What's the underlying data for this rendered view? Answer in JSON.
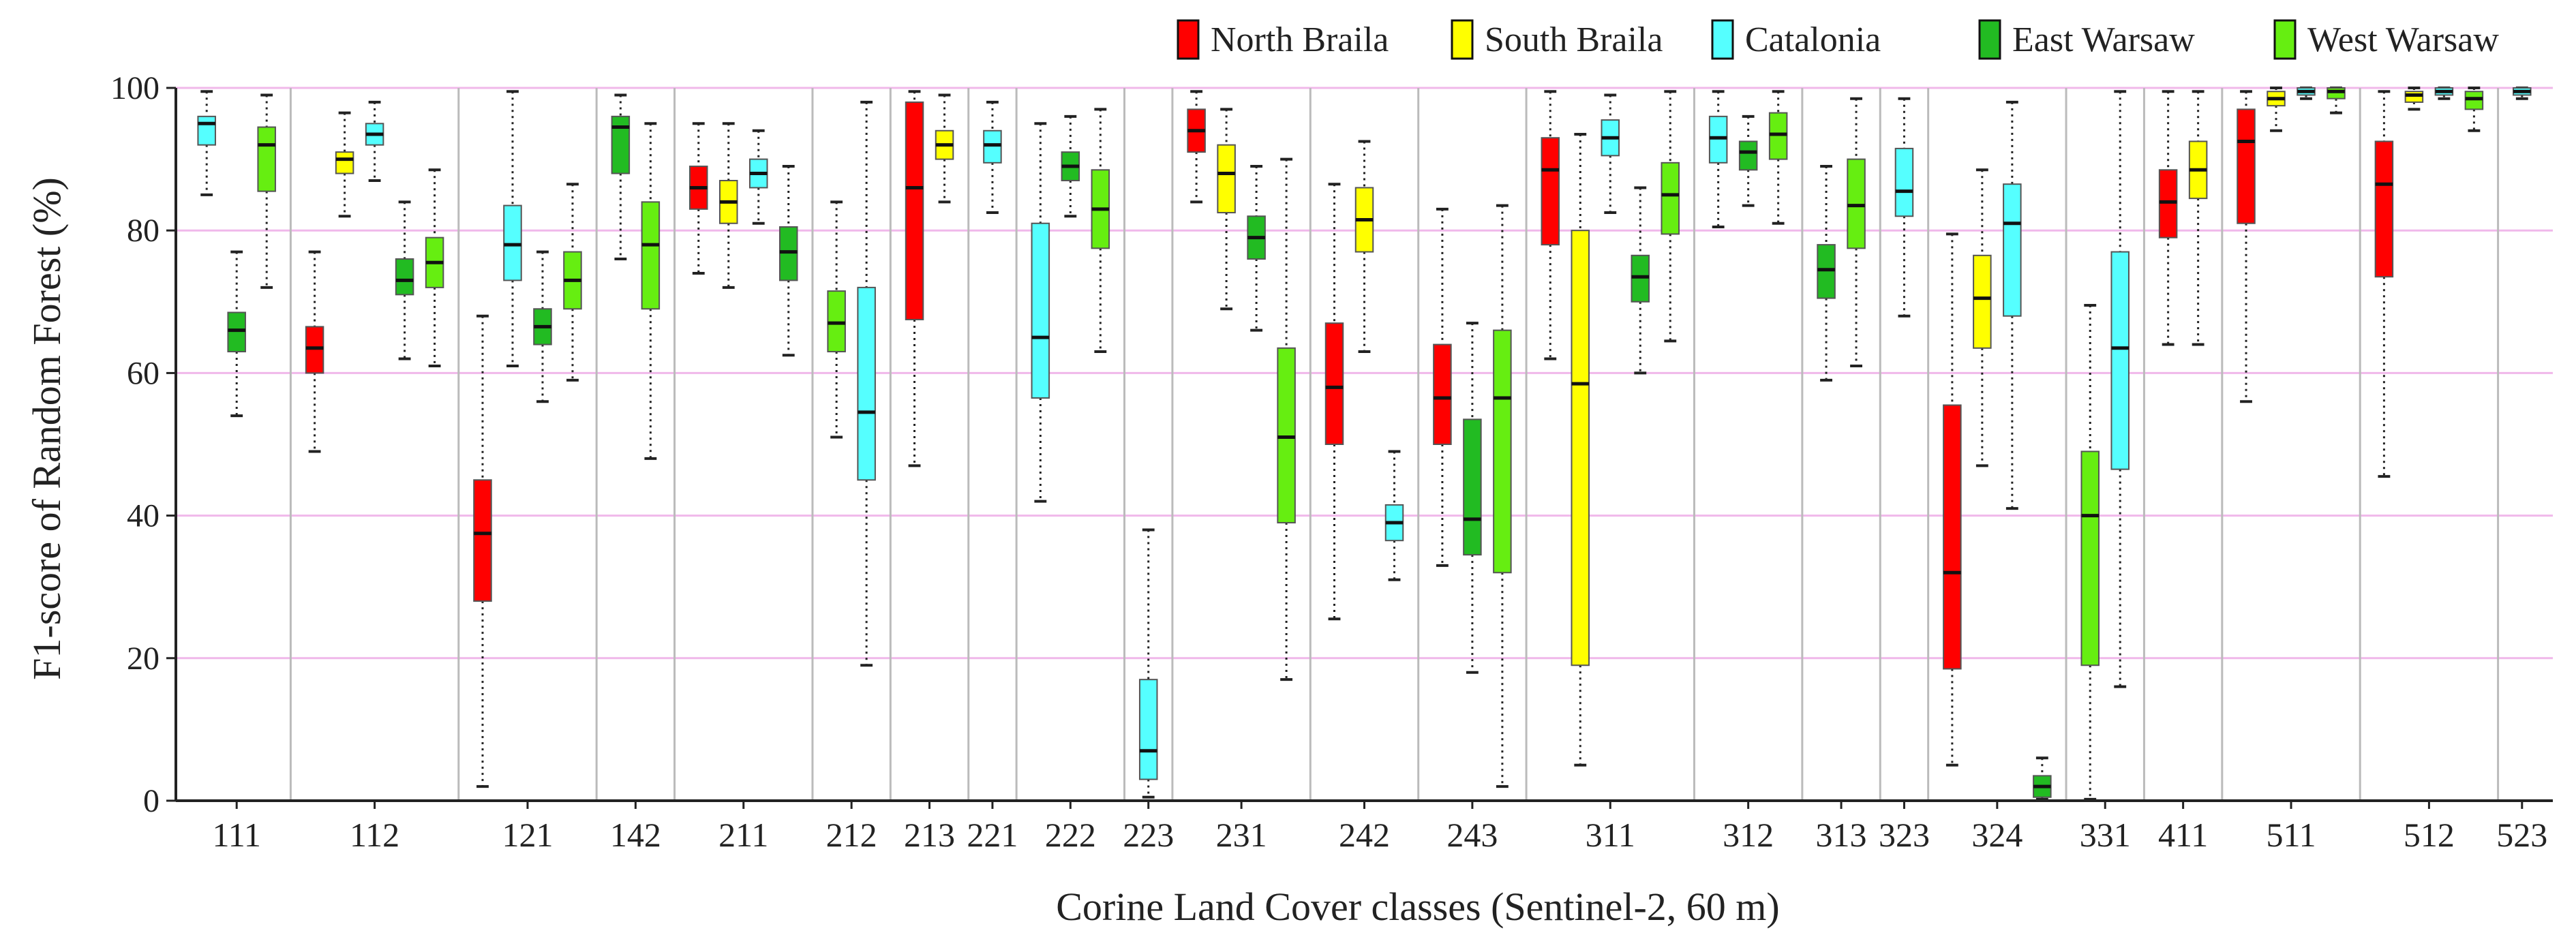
{
  "chart_data": {
    "type": "box",
    "title": "",
    "xlabel": "Corine Land Cover classes (Sentinel-2, 60 m)",
    "ylabel": "F1-score of Random Forest (%)",
    "ylim": [
      0,
      100
    ],
    "yticks": [
      0,
      20,
      40,
      60,
      80,
      100
    ],
    "grid": "horizontal",
    "legend_position": "top-right",
    "series": [
      {
        "name": "North Braila",
        "color": "#ff0000"
      },
      {
        "name": "South Braila",
        "color": "#ffff00"
      },
      {
        "name": "Catalonia",
        "color": "#55ffff"
      },
      {
        "name": "East Warsaw",
        "color": "#22bb22"
      },
      {
        "name": "West Warsaw",
        "color": "#66ee11"
      }
    ],
    "classes": [
      {
        "label": "111",
        "boxes": [
          {
            "series": 2,
            "min": 85,
            "q1": 92,
            "median": 95,
            "q3": 96,
            "max": 99.5
          },
          {
            "series": 3,
            "min": 54,
            "q1": 63,
            "median": 66,
            "q3": 68.5,
            "max": 77
          },
          {
            "series": 4,
            "min": 72,
            "q1": 85.5,
            "median": 92,
            "q3": 94.5,
            "max": 99
          }
        ]
      },
      {
        "label": "112",
        "boxes": [
          {
            "series": 0,
            "min": 49,
            "q1": 60,
            "median": 63.5,
            "q3": 66.5,
            "max": 77
          },
          {
            "series": 1,
            "min": 82,
            "q1": 88,
            "median": 90,
            "q3": 91,
            "max": 96.5
          },
          {
            "series": 2,
            "min": 87,
            "q1": 92,
            "median": 93.5,
            "q3": 95,
            "max": 98
          },
          {
            "series": 3,
            "min": 62,
            "q1": 71,
            "median": 73,
            "q3": 76,
            "max": 84
          },
          {
            "series": 4,
            "min": 61,
            "q1": 72,
            "median": 75.5,
            "q3": 79,
            "max": 88.5
          }
        ]
      },
      {
        "label": "121",
        "boxes": [
          {
            "series": 0,
            "min": 2,
            "q1": 28,
            "median": 37.5,
            "q3": 45,
            "max": 68
          },
          {
            "series": 2,
            "min": 61,
            "q1": 73,
            "median": 78,
            "q3": 83.5,
            "max": 99.5
          },
          {
            "series": 3,
            "min": 56,
            "q1": 64,
            "median": 66.5,
            "q3": 69,
            "max": 77
          },
          {
            "series": 4,
            "min": 59,
            "q1": 69,
            "median": 73,
            "q3": 77,
            "max": 86.5
          }
        ]
      },
      {
        "label": "142",
        "boxes": [
          {
            "series": 3,
            "min": 76,
            "q1": 88,
            "median": 94.5,
            "q3": 96,
            "max": 99
          },
          {
            "series": 4,
            "min": 48,
            "q1": 69,
            "median": 78,
            "q3": 84,
            "max": 95
          }
        ]
      },
      {
        "label": "211",
        "boxes": [
          {
            "series": 0,
            "min": 74,
            "q1": 83,
            "median": 86,
            "q3": 89,
            "max": 95
          },
          {
            "series": 1,
            "min": 72,
            "q1": 81,
            "median": 84,
            "q3": 87,
            "max": 95
          },
          {
            "series": 2,
            "min": 81,
            "q1": 86,
            "median": 88,
            "q3": 90,
            "max": 94
          },
          {
            "series": 3,
            "min": 62.5,
            "q1": 73,
            "median": 77,
            "q3": 80.5,
            "max": 89
          }
        ]
      },
      {
        "label": "212",
        "boxes": [
          {
            "series": 4,
            "min": 51,
            "q1": 63,
            "median": 67,
            "q3": 71.5,
            "max": 84
          },
          {
            "series": 2,
            "min": 19,
            "q1": 45,
            "median": 54.5,
            "q3": 72,
            "max": 98
          }
        ]
      },
      {
        "label": "213",
        "boxes": [
          {
            "series": 0,
            "min": 47,
            "q1": 67.5,
            "median": 86,
            "q3": 98,
            "max": 99.5
          },
          {
            "series": 1,
            "min": 84,
            "q1": 90,
            "median": 92,
            "q3": 94,
            "max": 99
          }
        ]
      },
      {
        "label": "221",
        "boxes": [
          {
            "series": 2,
            "min": 82.5,
            "q1": 89.5,
            "median": 92,
            "q3": 94,
            "max": 98
          }
        ]
      },
      {
        "label": "222",
        "boxes": [
          {
            "series": 2,
            "min": 42,
            "q1": 56.5,
            "median": 65,
            "q3": 81,
            "max": 95
          },
          {
            "series": 3,
            "min": 82,
            "q1": 87,
            "median": 89,
            "q3": 91,
            "max": 96
          },
          {
            "series": 4,
            "min": 63,
            "q1": 77.5,
            "median": 83,
            "q3": 88.5,
            "max": 97
          }
        ]
      },
      {
        "label": "223",
        "boxes": [
          {
            "series": 2,
            "min": 0.5,
            "q1": 3,
            "median": 7,
            "q3": 17,
            "max": 38
          }
        ]
      },
      {
        "label": "231",
        "boxes": [
          {
            "series": 0,
            "min": 84,
            "q1": 91,
            "median": 94,
            "q3": 97,
            "max": 99.5
          },
          {
            "series": 1,
            "min": 69,
            "q1": 82.5,
            "median": 88,
            "q3": 92,
            "max": 97
          },
          {
            "series": 3,
            "min": 66,
            "q1": 76,
            "median": 79,
            "q3": 82,
            "max": 89
          },
          {
            "series": 4,
            "min": 17,
            "q1": 39,
            "median": 51,
            "q3": 63.5,
            "max": 90
          }
        ]
      },
      {
        "label": "242",
        "boxes": [
          {
            "series": 0,
            "min": 25.5,
            "q1": 50,
            "median": 58,
            "q3": 67,
            "max": 86.5
          },
          {
            "series": 1,
            "min": 63,
            "q1": 77,
            "median": 81.5,
            "q3": 86,
            "max": 92.5
          },
          {
            "series": 2,
            "min": 31,
            "q1": 36.5,
            "median": 39,
            "q3": 41.5,
            "max": 49
          }
        ]
      },
      {
        "label": "243",
        "boxes": [
          {
            "series": 0,
            "min": 33,
            "q1": 50,
            "median": 56.5,
            "q3": 64,
            "max": 83
          },
          {
            "series": 3,
            "min": 18,
            "q1": 34.5,
            "median": 39.5,
            "q3": 53.5,
            "max": 67
          },
          {
            "series": 4,
            "min": 2,
            "q1": 32,
            "median": 56.5,
            "q3": 66,
            "max": 83.5
          }
        ]
      },
      {
        "label": "311",
        "boxes": [
          {
            "series": 0,
            "min": 62,
            "q1": 78,
            "median": 88.5,
            "q3": 93,
            "max": 99.5
          },
          {
            "series": 1,
            "min": 5,
            "q1": 19,
            "median": 58.5,
            "q3": 80,
            "max": 93.5
          },
          {
            "series": 2,
            "min": 82.5,
            "q1": 90.5,
            "median": 93,
            "q3": 95.5,
            "max": 99
          },
          {
            "series": 3,
            "min": 60,
            "q1": 70,
            "median": 73.5,
            "q3": 76.5,
            "max": 86
          },
          {
            "series": 4,
            "min": 64.5,
            "q1": 79.5,
            "median": 85,
            "q3": 89.5,
            "max": 99.5
          }
        ]
      },
      {
        "label": "312",
        "boxes": [
          {
            "series": 2,
            "min": 80.5,
            "q1": 89.5,
            "median": 93,
            "q3": 96,
            "max": 99.5
          },
          {
            "series": 3,
            "min": 83.5,
            "q1": 88.5,
            "median": 91,
            "q3": 92.5,
            "max": 96
          },
          {
            "series": 4,
            "min": 81,
            "q1": 90,
            "median": 93.5,
            "q3": 96.5,
            "max": 99.5
          }
        ]
      },
      {
        "label": "313",
        "boxes": [
          {
            "series": 3,
            "min": 59,
            "q1": 70.5,
            "median": 74.5,
            "q3": 78,
            "max": 89
          },
          {
            "series": 4,
            "min": 61,
            "q1": 77.5,
            "median": 83.5,
            "q3": 90,
            "max": 98.5
          }
        ]
      },
      {
        "label": "323",
        "boxes": [
          {
            "series": 2,
            "min": 68,
            "q1": 82,
            "median": 85.5,
            "q3": 91.5,
            "max": 98.5
          }
        ]
      },
      {
        "label": "324",
        "boxes": [
          {
            "series": 0,
            "min": 5,
            "q1": 18.5,
            "median": 32,
            "q3": 55.5,
            "max": 79.5
          },
          {
            "series": 1,
            "min": 47,
            "q1": 63.5,
            "median": 70.5,
            "q3": 76.5,
            "max": 88.5
          },
          {
            "series": 2,
            "min": 41,
            "q1": 68,
            "median": 81,
            "q3": 86.5,
            "max": 98
          },
          {
            "series": 3,
            "min": 0.2,
            "q1": 0.5,
            "median": 2,
            "q3": 3.5,
            "max": 6
          }
        ]
      },
      {
        "label": "331",
        "boxes": [
          {
            "series": 4,
            "min": 0.2,
            "q1": 19,
            "median": 40,
            "q3": 49,
            "max": 69.5
          },
          {
            "series": 2,
            "min": 16,
            "q1": 46.5,
            "median": 63.5,
            "q3": 77,
            "max": 99.5
          }
        ]
      },
      {
        "label": "411",
        "boxes": [
          {
            "series": 0,
            "min": 64,
            "q1": 79,
            "median": 84,
            "q3": 88.5,
            "max": 99.5
          },
          {
            "series": 1,
            "min": 64,
            "q1": 84.5,
            "median": 88.5,
            "q3": 92.5,
            "max": 99.5
          }
        ]
      },
      {
        "label": "511",
        "boxes": [
          {
            "series": 0,
            "min": 56,
            "q1": 81,
            "median": 92.5,
            "q3": 97,
            "max": 99.5
          },
          {
            "series": 1,
            "min": 94,
            "q1": 97.5,
            "median": 98.5,
            "q3": 99.5,
            "max": 100
          },
          {
            "series": 2,
            "min": 98.5,
            "q1": 99,
            "median": 99.5,
            "q3": 100,
            "max": 100
          },
          {
            "series": 4,
            "min": 96.5,
            "q1": 98.5,
            "median": 99.5,
            "q3": 100,
            "max": 100
          }
        ]
      },
      {
        "label": "512",
        "boxes": [
          {
            "series": 0,
            "min": 45.5,
            "q1": 73.5,
            "median": 86.5,
            "q3": 92.5,
            "max": 99.5
          },
          {
            "series": 1,
            "min": 97,
            "q1": 98,
            "median": 99,
            "q3": 99.5,
            "max": 100
          },
          {
            "series": 2,
            "min": 98.5,
            "q1": 99,
            "median": 99.5,
            "q3": 100,
            "max": 100
          },
          {
            "series": 4,
            "min": 94,
            "q1": 97,
            "median": 98.5,
            "q3": 99.5,
            "max": 100
          }
        ]
      },
      {
        "label": "523",
        "boxes": [
          {
            "series": 2,
            "min": 98.5,
            "q1": 99,
            "median": 99.5,
            "q3": 100,
            "max": 100
          }
        ]
      }
    ]
  }
}
